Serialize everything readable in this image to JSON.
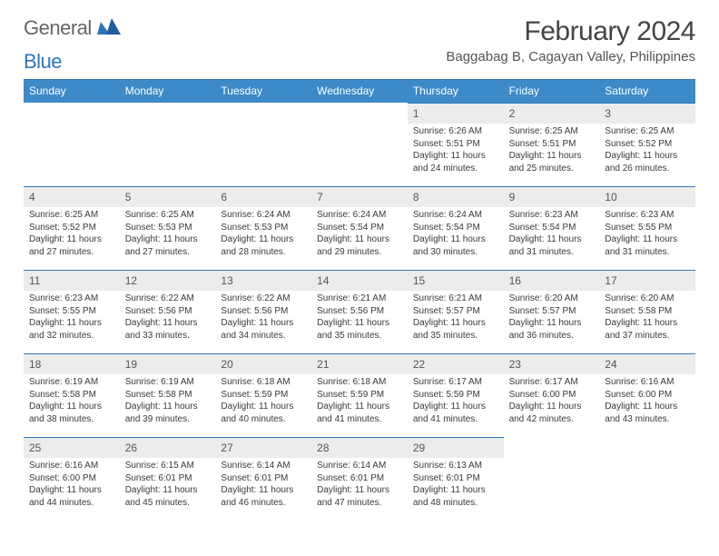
{
  "logo": {
    "word1": "General",
    "word2": "Blue"
  },
  "header": {
    "title": "February 2024",
    "location": "Baggabag B, Cagayan Valley, Philippines"
  },
  "weekdays": [
    "Sunday",
    "Monday",
    "Tuesday",
    "Wednesday",
    "Thursday",
    "Friday",
    "Saturday"
  ],
  "colors": {
    "header_bar": "#3d8ac9",
    "divider": "#2f76b8",
    "daynum_bg": "#ececec"
  },
  "firstWeekdayIndex": 4,
  "days": [
    {
      "n": 1,
      "sunrise": "6:26 AM",
      "sunset": "5:51 PM",
      "dl_h": 11,
      "dl_m": 24
    },
    {
      "n": 2,
      "sunrise": "6:25 AM",
      "sunset": "5:51 PM",
      "dl_h": 11,
      "dl_m": 25
    },
    {
      "n": 3,
      "sunrise": "6:25 AM",
      "sunset": "5:52 PM",
      "dl_h": 11,
      "dl_m": 26
    },
    {
      "n": 4,
      "sunrise": "6:25 AM",
      "sunset": "5:52 PM",
      "dl_h": 11,
      "dl_m": 27
    },
    {
      "n": 5,
      "sunrise": "6:25 AM",
      "sunset": "5:53 PM",
      "dl_h": 11,
      "dl_m": 27
    },
    {
      "n": 6,
      "sunrise": "6:24 AM",
      "sunset": "5:53 PM",
      "dl_h": 11,
      "dl_m": 28
    },
    {
      "n": 7,
      "sunrise": "6:24 AM",
      "sunset": "5:54 PM",
      "dl_h": 11,
      "dl_m": 29
    },
    {
      "n": 8,
      "sunrise": "6:24 AM",
      "sunset": "5:54 PM",
      "dl_h": 11,
      "dl_m": 30
    },
    {
      "n": 9,
      "sunrise": "6:23 AM",
      "sunset": "5:54 PM",
      "dl_h": 11,
      "dl_m": 31
    },
    {
      "n": 10,
      "sunrise": "6:23 AM",
      "sunset": "5:55 PM",
      "dl_h": 11,
      "dl_m": 31
    },
    {
      "n": 11,
      "sunrise": "6:23 AM",
      "sunset": "5:55 PM",
      "dl_h": 11,
      "dl_m": 32
    },
    {
      "n": 12,
      "sunrise": "6:22 AM",
      "sunset": "5:56 PM",
      "dl_h": 11,
      "dl_m": 33
    },
    {
      "n": 13,
      "sunrise": "6:22 AM",
      "sunset": "5:56 PM",
      "dl_h": 11,
      "dl_m": 34
    },
    {
      "n": 14,
      "sunrise": "6:21 AM",
      "sunset": "5:56 PM",
      "dl_h": 11,
      "dl_m": 35
    },
    {
      "n": 15,
      "sunrise": "6:21 AM",
      "sunset": "5:57 PM",
      "dl_h": 11,
      "dl_m": 35
    },
    {
      "n": 16,
      "sunrise": "6:20 AM",
      "sunset": "5:57 PM",
      "dl_h": 11,
      "dl_m": 36
    },
    {
      "n": 17,
      "sunrise": "6:20 AM",
      "sunset": "5:58 PM",
      "dl_h": 11,
      "dl_m": 37
    },
    {
      "n": 18,
      "sunrise": "6:19 AM",
      "sunset": "5:58 PM",
      "dl_h": 11,
      "dl_m": 38
    },
    {
      "n": 19,
      "sunrise": "6:19 AM",
      "sunset": "5:58 PM",
      "dl_h": 11,
      "dl_m": 39
    },
    {
      "n": 20,
      "sunrise": "6:18 AM",
      "sunset": "5:59 PM",
      "dl_h": 11,
      "dl_m": 40
    },
    {
      "n": 21,
      "sunrise": "6:18 AM",
      "sunset": "5:59 PM",
      "dl_h": 11,
      "dl_m": 41
    },
    {
      "n": 22,
      "sunrise": "6:17 AM",
      "sunset": "5:59 PM",
      "dl_h": 11,
      "dl_m": 41
    },
    {
      "n": 23,
      "sunrise": "6:17 AM",
      "sunset": "6:00 PM",
      "dl_h": 11,
      "dl_m": 42
    },
    {
      "n": 24,
      "sunrise": "6:16 AM",
      "sunset": "6:00 PM",
      "dl_h": 11,
      "dl_m": 43
    },
    {
      "n": 25,
      "sunrise": "6:16 AM",
      "sunset": "6:00 PM",
      "dl_h": 11,
      "dl_m": 44
    },
    {
      "n": 26,
      "sunrise": "6:15 AM",
      "sunset": "6:01 PM",
      "dl_h": 11,
      "dl_m": 45
    },
    {
      "n": 27,
      "sunrise": "6:14 AM",
      "sunset": "6:01 PM",
      "dl_h": 11,
      "dl_m": 46
    },
    {
      "n": 28,
      "sunrise": "6:14 AM",
      "sunset": "6:01 PM",
      "dl_h": 11,
      "dl_m": 47
    },
    {
      "n": 29,
      "sunrise": "6:13 AM",
      "sunset": "6:01 PM",
      "dl_h": 11,
      "dl_m": 48
    }
  ],
  "labels": {
    "sunrise": "Sunrise:",
    "sunset": "Sunset:",
    "daylight_prefix": "Daylight:",
    "hours_word": "hours",
    "and_word": "and",
    "minutes_word": "minutes."
  }
}
